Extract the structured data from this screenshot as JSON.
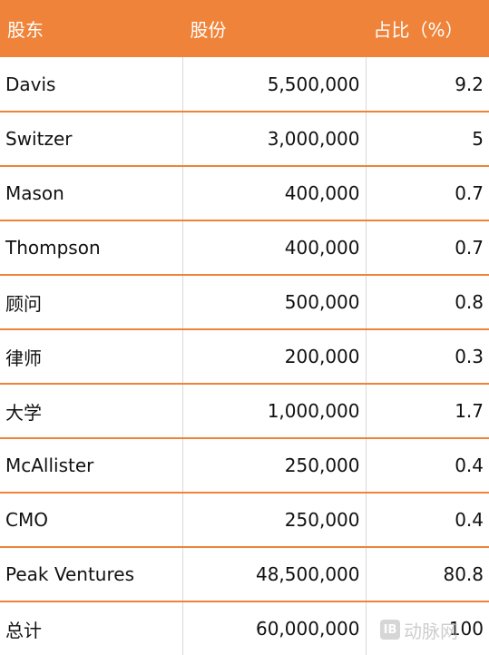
{
  "table": {
    "headers": [
      "股东",
      "股份",
      "占比（%）"
    ],
    "rows": [
      {
        "name": "Davis",
        "shares": "5,500,000",
        "pct": "9.2"
      },
      {
        "name": "Switzer",
        "shares": "3,000,000",
        "pct": "5"
      },
      {
        "name": "Mason",
        "shares": "400,000",
        "pct": "0.7"
      },
      {
        "name": "Thompson",
        "shares": "400,000",
        "pct": "0.7"
      },
      {
        "name": "顾问",
        "shares": "500,000",
        "pct": "0.8"
      },
      {
        "name": "律师",
        "shares": "200,000",
        "pct": "0.3"
      },
      {
        "name": "大学",
        "shares": "1,000,000",
        "pct": "1.7"
      },
      {
        "name": "McAllister",
        "shares": "250,000",
        "pct": "0.4"
      },
      {
        "name": "CMO",
        "shares": "250,000",
        "pct": "0.4"
      },
      {
        "name": "Peak Ventures",
        "shares": "48,500,000",
        "pct": "80.8"
      },
      {
        "name": "总计",
        "shares": "60,000,000",
        "pct": "100"
      }
    ]
  },
  "watermark": {
    "logo": "IB",
    "text": "动脉网"
  }
}
